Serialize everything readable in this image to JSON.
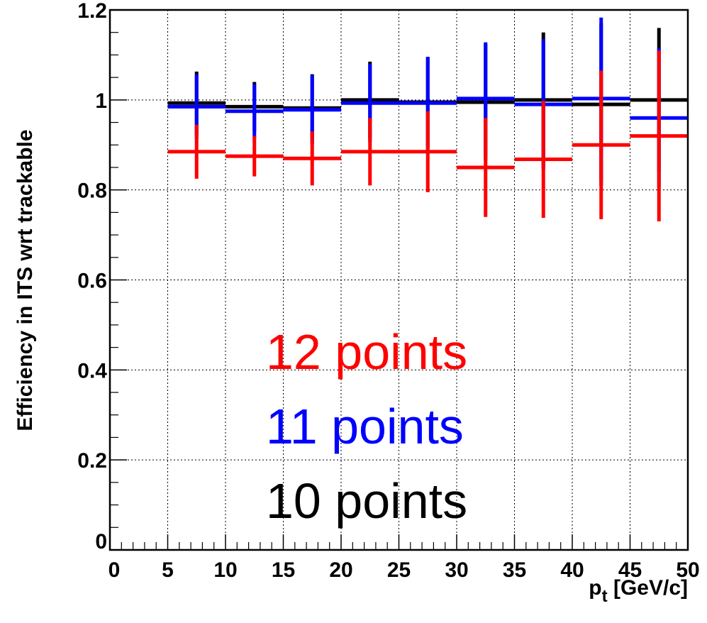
{
  "chart_data": {
    "type": "scatter",
    "xlabel": "p",
    "xlabel_sub": "t",
    "xlabel_unit": " [GeV/c]",
    "ylabel": "Efficiency in ITS wrt trackable",
    "xlim": [
      0,
      50
    ],
    "ylim": [
      0,
      1.2
    ],
    "x_ticks": [
      "0",
      "5",
      "10",
      "15",
      "20",
      "25",
      "30",
      "35",
      "40",
      "45",
      "50"
    ],
    "y_ticks": [
      "0",
      "0.2",
      "0.4",
      "0.6",
      "0.8",
      "1",
      "1.2"
    ],
    "grid": true,
    "bin_edges": [
      5,
      10,
      15,
      20,
      25,
      30,
      35,
      40,
      45,
      50
    ],
    "series": [
      {
        "name": "10 points",
        "color": "#000000",
        "values": [
          0.993,
          0.985,
          0.982,
          1.0,
          0.995,
          0.995,
          1.0,
          0.99,
          1.0
        ],
        "yerr": [
          0.07,
          0.055,
          0.075,
          0.085,
          0.1,
          0.13,
          0.15,
          0.18,
          0.16
        ]
      },
      {
        "name": "11 points",
        "color": "#0000ff",
        "values": [
          0.985,
          0.975,
          0.978,
          0.993,
          0.993,
          1.003,
          0.99,
          1.003,
          0.96
        ],
        "yerr": [
          0.072,
          0.06,
          0.077,
          0.087,
          0.103,
          0.125,
          0.145,
          0.18,
          0.155
        ]
      },
      {
        "name": "12 points",
        "color": "#ff0000",
        "values": [
          0.885,
          0.875,
          0.87,
          0.885,
          0.885,
          0.85,
          0.868,
          0.9,
          0.92
        ],
        "yerr": [
          0.06,
          0.045,
          0.06,
          0.075,
          0.09,
          0.11,
          0.13,
          0.165,
          0.19
        ]
      }
    ],
    "legend": {
      "placement": "center-bottom",
      "order": [
        "12 points",
        "11 points",
        "10 points"
      ]
    }
  }
}
